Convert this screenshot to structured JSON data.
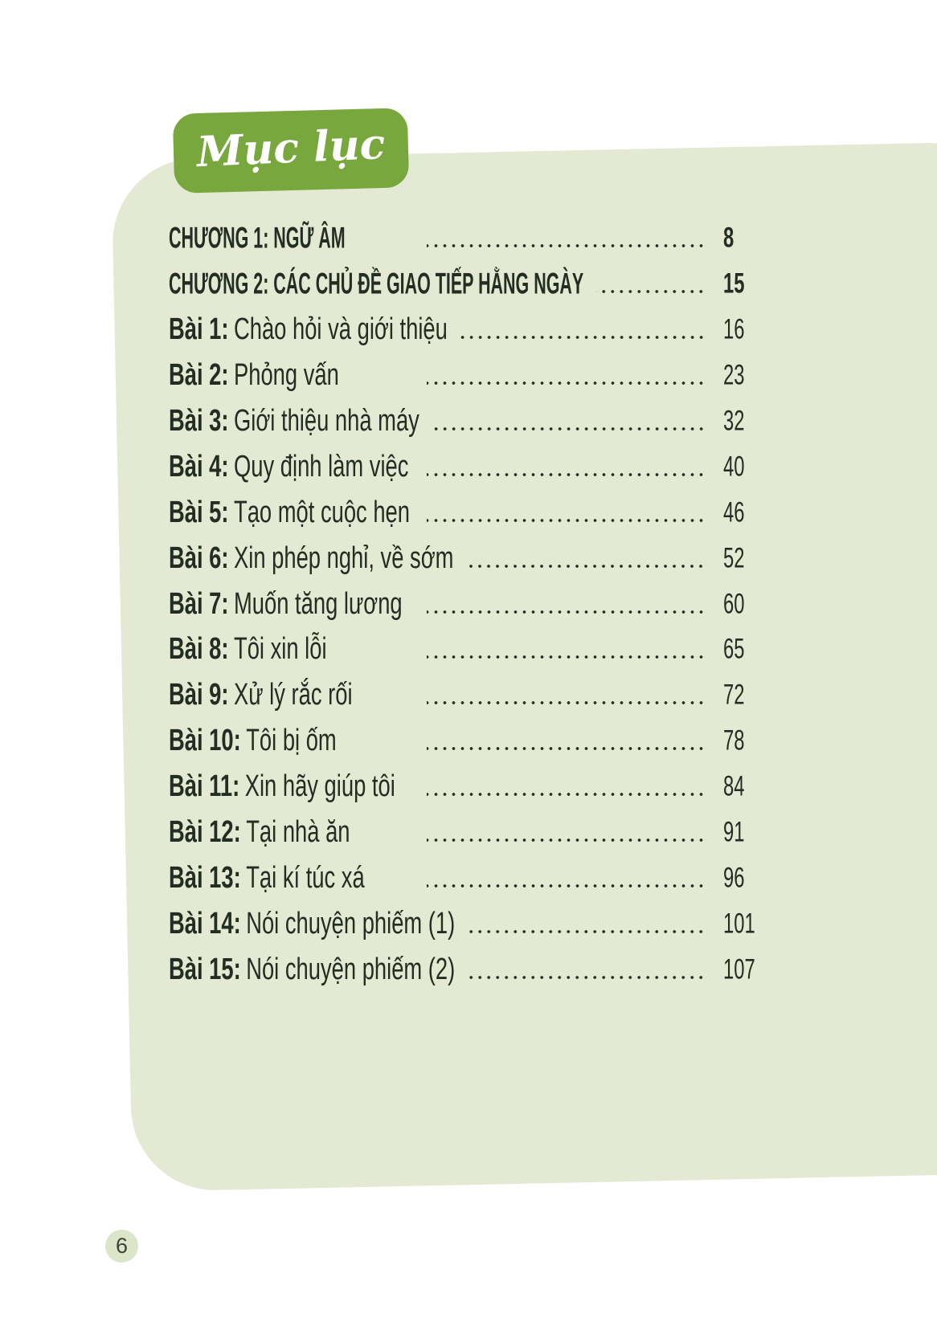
{
  "badge": {
    "title": "Mục lục"
  },
  "footer": {
    "page_number": "6"
  },
  "colors": {
    "badge_green": "#78a73e",
    "panel_green": "#e3e9d2",
    "text_dark": "#242d22",
    "circle_green": "#dde5c8"
  },
  "toc": {
    "entries": [
      {
        "type": "chapter",
        "prefix": "",
        "label": "CHƯƠNG 1: NGỮ ÂM",
        "page": "8"
      },
      {
        "type": "chapter",
        "prefix": "",
        "label": "CHƯƠNG 2: CÁC CHỦ ĐỀ GIAO TIẾP HẰNG NGÀY",
        "page": "15"
      },
      {
        "type": "lesson",
        "prefix": "Bài 1:",
        "label": "Chào hỏi và giới thiệu",
        "page": "16"
      },
      {
        "type": "lesson",
        "prefix": "Bài 2:",
        "label": "Phỏng vấn",
        "page": "23"
      },
      {
        "type": "lesson",
        "prefix": "Bài 3:",
        "label": "Giới thiệu nhà máy",
        "page": "32"
      },
      {
        "type": "lesson",
        "prefix": "Bài 4:",
        "label": "Quy định làm việc",
        "page": "40"
      },
      {
        "type": "lesson",
        "prefix": "Bài 5:",
        "label": "Tạo một cuộc hẹn",
        "page": "46"
      },
      {
        "type": "lesson",
        "prefix": "Bài 6:",
        "label": "Xin phép nghỉ, về sớm",
        "page": "52"
      },
      {
        "type": "lesson",
        "prefix": "Bài 7:",
        "label": "Muốn tăng lương",
        "page": "60"
      },
      {
        "type": "lesson",
        "prefix": "Bài 8:",
        "label": "Tôi xin lỗi",
        "page": "65"
      },
      {
        "type": "lesson",
        "prefix": "Bài 9:",
        "label": "Xử lý rắc rối",
        "page": "72"
      },
      {
        "type": "lesson",
        "prefix": "Bài 10:",
        "label": "Tôi bị ốm",
        "page": "78"
      },
      {
        "type": "lesson",
        "prefix": "Bài 11:",
        "label": "Xin hãy giúp tôi",
        "page": "84"
      },
      {
        "type": "lesson",
        "prefix": "Bài 12:",
        "label": "Tại nhà ăn",
        "page": "91"
      },
      {
        "type": "lesson",
        "prefix": "Bài 13:",
        "label": "Tại kí túc xá",
        "page": "96"
      },
      {
        "type": "lesson",
        "prefix": "Bài 14:",
        "label": "Nói chuyện phiếm (1)",
        "page": "101"
      },
      {
        "type": "lesson",
        "prefix": "Bài 15:",
        "label": "Nói chuyện phiếm (2)",
        "page": "107"
      }
    ]
  }
}
